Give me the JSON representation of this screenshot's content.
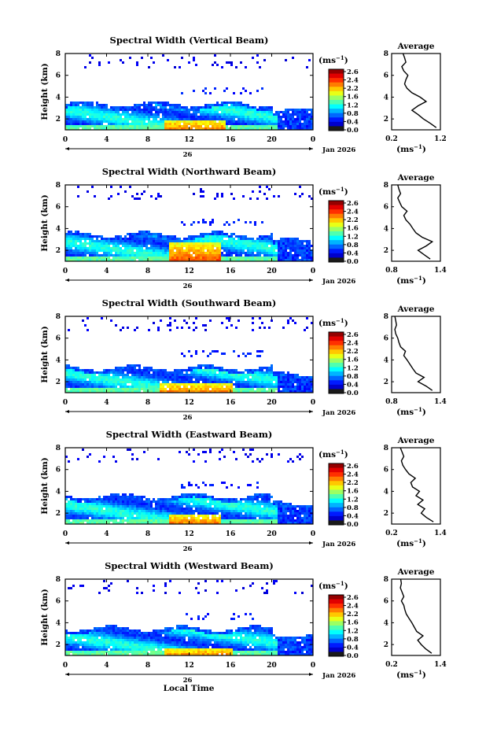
{
  "figure": {
    "xlabel_bottom": "Local Time",
    "date_label": "Jan 2026",
    "day_label": "26",
    "panel_ylabel": "Height (km)",
    "unit_label": "(ms",
    "unit_exp": "−1",
    "avg_title": "Average",
    "colorbar_ticks": [
      "2.6",
      "2.4",
      "2.2",
      "1.6",
      "1.2",
      "0.8",
      "0.4",
      "0.0"
    ]
  },
  "chart_data": [
    {
      "type": "heatmap",
      "title": "Spectral Width (Vertical Beam)",
      "xlabel": "",
      "ylabel": "Height (km)",
      "xticks": [
        "0",
        "4",
        "8",
        "12",
        "16",
        "20",
        "0"
      ],
      "yticks": [
        "2",
        "4",
        "6",
        "8"
      ],
      "xlim": [
        0,
        24
      ],
      "ylim": [
        1,
        8
      ],
      "colorbar": {
        "label": "(ms-1)",
        "range": [
          0.0,
          2.6
        ]
      },
      "layer_top_km": 3.5,
      "hot_region": {
        "x_start_h": 9.5,
        "x_end_h": 15.5,
        "height_max_km": 2.0
      },
      "profile": {
        "title": "Average",
        "xlabel": "(ms-1)",
        "xticks": [
          "0.2",
          "1.2"
        ],
        "xlim": [
          0.2,
          1.4
        ],
        "yticks": [
          "2",
          "4",
          "6",
          "8"
        ],
        "ylim": [
          1,
          8
        ],
        "x": [
          1.3,
          1.15,
          0.98,
          0.85,
          0.7,
          0.85,
          1.05,
          0.9,
          0.7,
          0.58,
          0.52,
          0.55,
          0.6,
          0.5,
          0.45,
          0.55,
          0.52,
          0.48
        ],
        "heights": [
          1.2,
          1.6,
          2.0,
          2.4,
          2.8,
          3.2,
          3.6,
          4.0,
          4.4,
          4.8,
          5.2,
          5.6,
          6.0,
          6.4,
          6.8,
          7.2,
          7.6,
          8.0
        ]
      }
    },
    {
      "type": "heatmap",
      "title": "Spectral Width (Northward Beam)",
      "xlabel": "",
      "ylabel": "Height (km)",
      "xticks": [
        "0",
        "4",
        "8",
        "12",
        "16",
        "20",
        "0"
      ],
      "yticks": [
        "2",
        "4",
        "6",
        "8"
      ],
      "xlim": [
        0,
        24
      ],
      "ylim": [
        1,
        8
      ],
      "colorbar": {
        "label": "(ms-1)",
        "range": [
          0.0,
          2.6
        ]
      },
      "layer_top_km": 3.6,
      "hot_region": {
        "x_start_h": 10.0,
        "x_end_h": 15.0,
        "height_max_km": 2.8
      },
      "profile": {
        "title": "Average",
        "xlabel": "(ms-1)",
        "xticks": [
          "0.8",
          "1.4"
        ],
        "xlim": [
          0.4,
          1.6
        ],
        "yticks": [
          "2",
          "4",
          "6",
          "8"
        ],
        "ylim": [
          1,
          8
        ],
        "x": [
          1.35,
          1.2,
          1.05,
          1.25,
          1.4,
          1.15,
          1.0,
          0.92,
          0.85,
          0.75,
          0.7,
          0.78,
          0.65,
          0.6,
          0.55,
          0.62,
          0.58,
          0.55
        ],
        "heights": [
          1.2,
          1.6,
          2.0,
          2.4,
          2.8,
          3.2,
          3.6,
          4.0,
          4.4,
          4.8,
          5.2,
          5.6,
          6.0,
          6.4,
          6.8,
          7.2,
          7.6,
          8.0
        ]
      }
    },
    {
      "type": "heatmap",
      "title": "Spectral Width (Southward Beam)",
      "xlabel": "",
      "ylabel": "Height (km)",
      "xticks": [
        "0",
        "4",
        "8",
        "12",
        "16",
        "20",
        "0"
      ],
      "yticks": [
        "2",
        "4",
        "6",
        "8"
      ],
      "xlim": [
        0,
        24
      ],
      "ylim": [
        1,
        8
      ],
      "colorbar": {
        "label": "(ms-1)",
        "range": [
          0.0,
          2.6
        ]
      },
      "layer_top_km": 3.4,
      "hot_region": {
        "x_start_h": 9.0,
        "x_end_h": 16.0,
        "height_max_km": 2.0
      },
      "profile": {
        "title": "Average",
        "xlabel": "(ms-1)",
        "xticks": [
          "0.8",
          "1.4"
        ],
        "xlim": [
          0.4,
          1.6
        ],
        "yticks": [
          "2",
          "4",
          "6",
          "8"
        ],
        "ylim": [
          1,
          8
        ],
        "x": [
          1.4,
          1.25,
          1.05,
          1.2,
          1.0,
          0.92,
          0.85,
          0.78,
          0.7,
          0.74,
          0.62,
          0.58,
          0.55,
          0.5,
          0.48,
          0.52,
          0.5,
          0.48
        ],
        "heights": [
          1.2,
          1.6,
          2.0,
          2.4,
          2.8,
          3.2,
          3.6,
          4.0,
          4.4,
          4.8,
          5.2,
          5.6,
          6.0,
          6.4,
          6.8,
          7.2,
          7.6,
          8.0
        ]
      }
    },
    {
      "type": "heatmap",
      "title": "Spectral Width (Eastward Beam)",
      "xlabel": "",
      "ylabel": "Height (km)",
      "xticks": [
        "0",
        "4",
        "8",
        "12",
        "16",
        "20",
        "0"
      ],
      "yticks": [
        "2",
        "4",
        "6",
        "8"
      ],
      "xlim": [
        0,
        24
      ],
      "ylim": [
        1,
        8
      ],
      "colorbar": {
        "label": "(ms-1)",
        "range": [
          0.0,
          2.6
        ]
      },
      "layer_top_km": 3.7,
      "hot_region": {
        "x_start_h": 10.0,
        "x_end_h": 15.0,
        "height_max_km": 2.0
      },
      "profile": {
        "title": "Average",
        "xlabel": "(ms-1)",
        "xticks": [
          "0.2",
          "1.4"
        ],
        "xlim": [
          0.2,
          1.6
        ],
        "yticks": [
          "2",
          "4",
          "6",
          "8"
        ],
        "ylim": [
          1,
          8
        ],
        "x": [
          1.4,
          1.2,
          1.05,
          1.15,
          0.95,
          1.1,
          0.9,
          1.0,
          0.8,
          0.75,
          0.88,
          0.7,
          0.6,
          0.52,
          0.48,
          0.55,
          0.5,
          0.45
        ],
        "heights": [
          1.2,
          1.6,
          2.0,
          2.4,
          2.8,
          3.2,
          3.6,
          4.0,
          4.4,
          4.8,
          5.2,
          5.6,
          6.0,
          6.4,
          6.8,
          7.2,
          7.6,
          8.0
        ]
      }
    },
    {
      "type": "heatmap",
      "title": "Spectral Width (Westward Beam)",
      "xlabel": "Local Time",
      "ylabel": "Height (km)",
      "xticks": [
        "0",
        "4",
        "8",
        "12",
        "16",
        "20",
        "0"
      ],
      "yticks": [
        "2",
        "4",
        "6",
        "8"
      ],
      "xlim": [
        0,
        24
      ],
      "ylim": [
        1,
        8
      ],
      "colorbar": {
        "label": "(ms-1)",
        "range": [
          0.0,
          2.6
        ]
      },
      "layer_top_km": 3.6,
      "hot_region": {
        "x_start_h": 9.5,
        "x_end_h": 16.0,
        "height_max_km": 1.8
      },
      "profile": {
        "title": "Average",
        "xlabel": "(ms-1)",
        "xticks": [
          "0.2",
          "1.4"
        ],
        "xlim": [
          0.2,
          1.6
        ],
        "yticks": [
          "2",
          "4",
          "6",
          "8"
        ],
        "ylim": [
          1,
          8
        ],
        "x": [
          1.35,
          1.18,
          1.05,
          0.95,
          1.1,
          0.92,
          0.85,
          0.78,
          0.7,
          0.62,
          0.58,
          0.55,
          0.48,
          0.55,
          0.5,
          0.45,
          0.48,
          0.46
        ],
        "heights": [
          1.2,
          1.6,
          2.0,
          2.4,
          2.8,
          3.2,
          3.6,
          4.0,
          4.4,
          4.8,
          5.2,
          5.6,
          6.0,
          6.4,
          6.8,
          7.2,
          7.6,
          8.0
        ]
      }
    }
  ]
}
